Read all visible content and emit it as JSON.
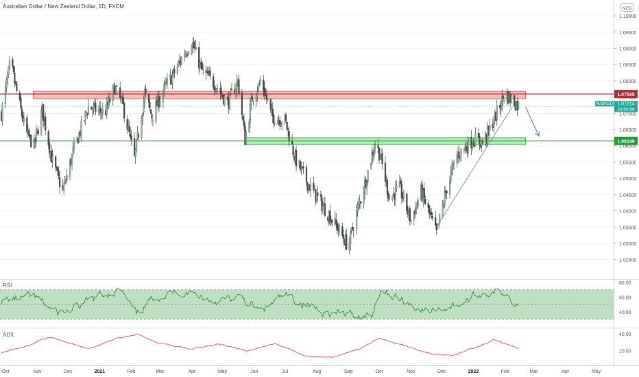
{
  "header": {
    "title": "Australian Dollar / New Zealand Dollar, 1D, FXCM",
    "currency": "NZD"
  },
  "price_axis": {
    "ticks": [
      "1.10000",
      "1.09500",
      "1.09000",
      "1.08500",
      "1.08000",
      "1.07500",
      "1.07000",
      "1.06500",
      "1.06000",
      "1.05500",
      "1.05000",
      "1.04500",
      "1.04000",
      "1.03500",
      "1.03000",
      "1.02500"
    ]
  },
  "badges": {
    "resistance": {
      "value": "1.07595",
      "color": "#b22833"
    },
    "symbol": {
      "label": "AUDNZD",
      "price": "1.07214",
      "countdown": "23:50:56",
      "color": "#26a69a"
    },
    "support": {
      "value": "1.06149",
      "color": "#1e9e34"
    }
  },
  "zones": {
    "resistance_zone": {
      "from": "2020-11-01",
      "to": "2022-02-25",
      "low": 1.0745,
      "high": 1.0768,
      "color": "#f28b8b"
    },
    "support_zone": {
      "from": "2021-05-28",
      "to": "2022-02-25",
      "low": 1.0605,
      "high": 1.0625,
      "color": "#7ee27e"
    }
  },
  "time_axis": {
    "labels": [
      "Oct",
      "Nov",
      "Dec",
      "2021",
      "Feb",
      "Mar",
      "Apr",
      "May",
      "Jun",
      "Jul",
      "Aug",
      "Sep",
      "Oct",
      "Nov",
      "Dec",
      "2022",
      "Feb",
      "Mar",
      "Apr",
      "May"
    ]
  },
  "rsi_pane": {
    "label": "RSI",
    "ticks": [
      "80.00",
      "60.00",
      "40.00"
    ],
    "upper": 70,
    "lower": 30,
    "color": "#2e7d32"
  },
  "adx_pane": {
    "label": "ADX",
    "ticks": [
      "40.00",
      "20.00"
    ],
    "color": "#e53935"
  },
  "chart_data": [
    {
      "type": "candlestick",
      "title": "Australian Dollar / New Zealand Dollar, 1D, FXCM",
      "ylim": [
        1.0205,
        1.1015
      ],
      "x_range": [
        "2020-10-01",
        "2022-05-20"
      ],
      "key_levels": [
        1.07595,
        1.06149
      ],
      "last_price": 1.07214,
      "series": [
        {
          "name": "price path (approx. closes)",
          "x": [
            "2020-10-01",
            "2020-10-10",
            "2020-10-15",
            "2020-10-25",
            "2020-11-02",
            "2020-11-10",
            "2020-11-20",
            "2020-11-30",
            "2020-12-10",
            "2020-12-25",
            "2021-01-10",
            "2021-01-20",
            "2021-01-28",
            "2021-02-08",
            "2021-02-18",
            "2021-02-25",
            "2021-03-08",
            "2021-03-18",
            "2021-03-28",
            "2021-04-05",
            "2021-04-15",
            "2021-04-28",
            "2021-05-10",
            "2021-05-20",
            "2021-05-27",
            "2021-06-03",
            "2021-06-12",
            "2021-06-22",
            "2021-07-05",
            "2021-07-15",
            "2021-07-28",
            "2021-08-10",
            "2021-08-25",
            "2021-09-05",
            "2021-09-10",
            "2021-09-20",
            "2021-10-01",
            "2021-10-06",
            "2021-10-15",
            "2021-10-25",
            "2021-11-05",
            "2021-11-15",
            "2021-11-30",
            "2021-12-10",
            "2021-12-20",
            "2022-01-05",
            "2022-01-15",
            "2022-01-25",
            "2022-02-05",
            "2022-02-12",
            "2022-02-19"
          ],
          "values": [
            1.07,
            1.086,
            1.078,
            1.064,
            1.06,
            1.071,
            1.055,
            1.046,
            1.058,
            1.072,
            1.07,
            1.078,
            1.072,
            1.056,
            1.076,
            1.069,
            1.077,
            1.082,
            1.088,
            1.092,
            1.083,
            1.079,
            1.073,
            1.08,
            1.062,
            1.075,
            1.08,
            1.069,
            1.068,
            1.056,
            1.048,
            1.042,
            1.035,
            1.029,
            1.036,
            1.047,
            1.061,
            1.057,
            1.044,
            1.047,
            1.037,
            1.046,
            1.033,
            1.047,
            1.057,
            1.062,
            1.061,
            1.068,
            1.076,
            1.074,
            1.0721
          ]
        },
        {
          "name": "trendline",
          "x": [
            "2021-12-01",
            "2022-02-12"
          ],
          "values": [
            1.0355,
            1.072
          ]
        },
        {
          "name": "projection arrow",
          "x": [
            "2022-02-25",
            "2022-03-10"
          ],
          "values": [
            1.072,
            1.063
          ]
        }
      ]
    },
    {
      "type": "line",
      "title": "RSI",
      "ylim": [
        22,
        82
      ],
      "reference_lines": [
        70,
        50,
        30
      ],
      "series": [
        {
          "name": "RSI",
          "x": [
            "2020-10-01",
            "2020-11-02",
            "2020-11-25",
            "2020-12-10",
            "2021-01-05",
            "2021-01-25",
            "2021-02-10",
            "2021-03-01",
            "2021-04-01",
            "2021-04-25",
            "2021-05-25",
            "2021-06-10",
            "2021-07-05",
            "2021-07-25",
            "2021-08-20",
            "2021-09-10",
            "2021-09-28",
            "2021-10-06",
            "2021-10-28",
            "2021-11-20",
            "2021-12-05",
            "2021-12-25",
            "2022-01-15",
            "2022-02-05",
            "2022-02-19"
          ],
          "values": [
            55,
            60,
            38,
            42,
            62,
            70,
            35,
            62,
            68,
            55,
            58,
            40,
            62,
            50,
            38,
            35,
            36,
            72,
            55,
            40,
            45,
            52,
            66,
            68,
            50
          ]
        }
      ]
    },
    {
      "type": "line",
      "title": "ADX",
      "ylim": [
        5,
        45
      ],
      "series": [
        {
          "name": "ADX",
          "x": [
            "2020-10-01",
            "2020-10-25",
            "2020-11-15",
            "2020-12-05",
            "2020-12-25",
            "2021-01-20",
            "2021-02-10",
            "2021-03-01",
            "2021-04-05",
            "2021-05-01",
            "2021-05-28",
            "2021-06-25",
            "2021-07-25",
            "2021-08-20",
            "2021-09-15",
            "2021-10-05",
            "2021-10-30",
            "2021-11-25",
            "2021-12-15",
            "2022-01-10",
            "2022-01-25",
            "2022-02-10",
            "2022-02-19"
          ],
          "values": [
            18,
            25,
            36,
            30,
            22,
            34,
            40,
            30,
            22,
            28,
            20,
            28,
            14,
            12,
            22,
            35,
            26,
            16,
            14,
            25,
            33,
            26,
            22
          ]
        }
      ]
    }
  ]
}
